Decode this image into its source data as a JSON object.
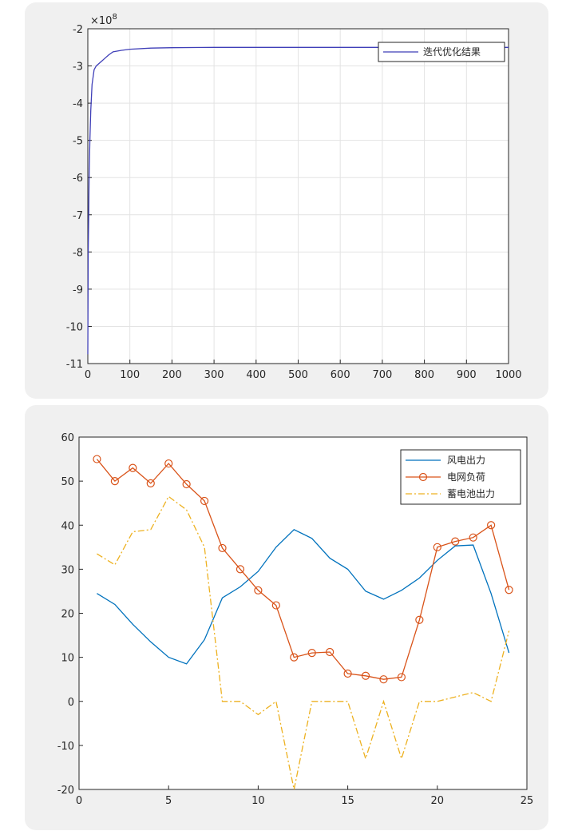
{
  "chart_data": [
    {
      "type": "line",
      "title": "",
      "xlabel": "",
      "ylabel": "",
      "exponent_label": "×10",
      "exponent_power": "8",
      "xlim": [
        0,
        1000
      ],
      "ylim": [
        -11,
        -2
      ],
      "grid": true,
      "legend_position": "top-right",
      "x_ticks": [
        "0",
        "100",
        "200",
        "300",
        "400",
        "500",
        "600",
        "700",
        "800",
        "900",
        "1000"
      ],
      "y_ticks": [
        "-2",
        "-3",
        "-4",
        "-5",
        "-6",
        "-7",
        "-8",
        "-9",
        "-10",
        "-11"
      ],
      "series": [
        {
          "name": "迭代优化结果",
          "color": "#3f3fb8",
          "x": [
            0,
            1,
            2,
            3,
            5,
            7,
            10,
            15,
            20,
            30,
            40,
            50,
            60,
            80,
            100,
            150,
            200,
            300,
            500,
            700,
            1000
          ],
          "y": [
            -10.75,
            -8.0,
            -7.0,
            -6.0,
            -5.0,
            -4.2,
            -3.5,
            -3.1,
            -3.0,
            -2.9,
            -2.8,
            -2.7,
            -2.62,
            -2.58,
            -2.55,
            -2.52,
            -2.51,
            -2.5,
            -2.5,
            -2.5,
            -2.5
          ]
        }
      ]
    },
    {
      "type": "line",
      "title": "",
      "xlabel": "",
      "ylabel": "",
      "xlim": [
        0,
        25
      ],
      "ylim": [
        -20,
        60
      ],
      "grid": false,
      "legend_position": "top-right",
      "x_ticks": [
        "0",
        "5",
        "10",
        "15",
        "20",
        "25"
      ],
      "y_ticks": [
        "60",
        "50",
        "40",
        "30",
        "20",
        "10",
        "0",
        "-10",
        "-20"
      ],
      "x": [
        1,
        2,
        3,
        4,
        5,
        6,
        7,
        8,
        9,
        10,
        11,
        12,
        13,
        14,
        15,
        16,
        17,
        18,
        19,
        20,
        21,
        22,
        23,
        24
      ],
      "series": [
        {
          "name": "风电出力",
          "color": "#0072bd",
          "style": "solid",
          "marker": "none",
          "values": [
            24.5,
            22,
            17.5,
            13.5,
            10,
            8.5,
            14,
            23.5,
            26,
            29.5,
            35,
            39,
            37,
            32.5,
            30,
            25,
            23.2,
            25.2,
            28,
            32,
            35.3,
            35.5,
            24.5,
            11
          ]
        },
        {
          "name": "电网负荷",
          "color": "#d95319",
          "style": "solid",
          "marker": "circle",
          "values": [
            55,
            50,
            53,
            49.5,
            54,
            49.3,
            45.5,
            34.8,
            30,
            25.2,
            21.8,
            10,
            11,
            11.2,
            6.3,
            5.8,
            5,
            5.5,
            18.5,
            35,
            36.3,
            37.2,
            40,
            25.3
          ]
        },
        {
          "name": "蓄电池出力",
          "color": "#edb120",
          "style": "dashdot",
          "marker": "none",
          "values": [
            33.5,
            31,
            38.5,
            39,
            46.5,
            43.5,
            35,
            0,
            0,
            -3,
            0,
            -20,
            0,
            0,
            0,
            -13,
            0,
            -13,
            0,
            0,
            1,
            2,
            0,
            16
          ]
        }
      ]
    }
  ]
}
